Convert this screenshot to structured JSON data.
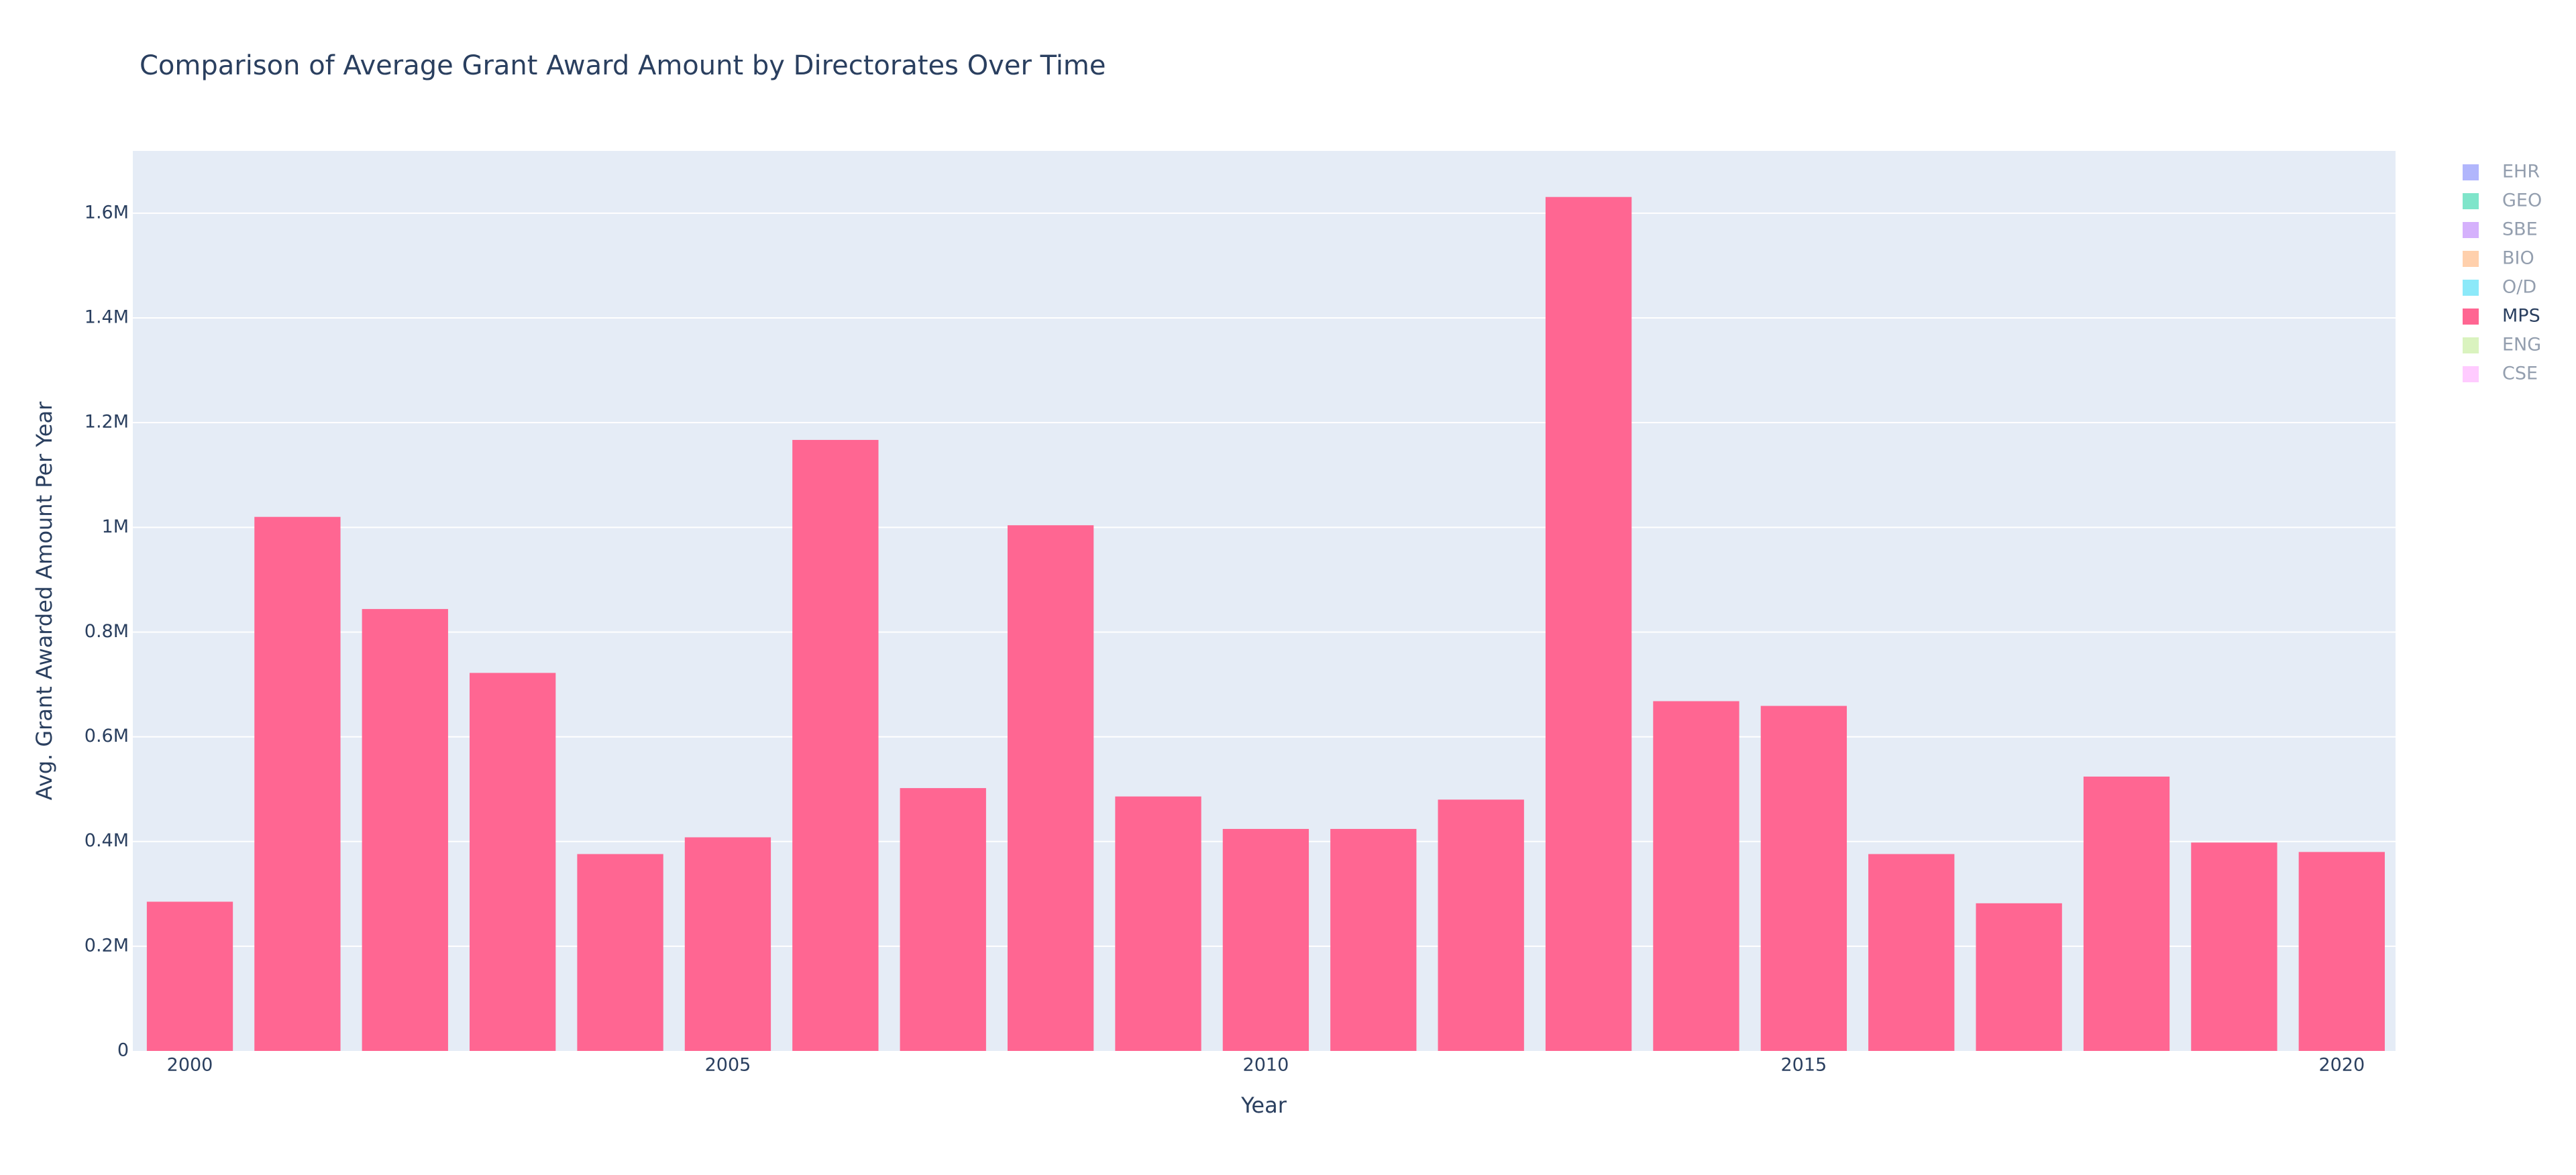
{
  "chart_data": {
    "type": "bar",
    "title": "Comparison of Average Grant Award Amount by Directorates Over Time",
    "x_label": "Year",
    "y_label": "Avg. Grant Awarded Amount Per Year",
    "x": [
      2000,
      2001,
      2002,
      2003,
      2004,
      2005,
      2006,
      2007,
      2008,
      2009,
      2010,
      2011,
      2012,
      2013,
      2014,
      2015,
      2016,
      2017,
      2018,
      2019,
      2020
    ],
    "series": [
      {
        "name": "EHR",
        "color": "#636efa",
        "visible": false
      },
      {
        "name": "GEO",
        "color": "#00cc96",
        "visible": false
      },
      {
        "name": "SBE",
        "color": "#ab63fa",
        "visible": false
      },
      {
        "name": "BIO",
        "color": "#ffa15a",
        "visible": false
      },
      {
        "name": "O/D",
        "color": "#19d3f3",
        "visible": false
      },
      {
        "name": "MPS",
        "color": "#ff6692",
        "visible": true,
        "values": [
          285000,
          1020000,
          844000,
          722000,
          376000,
          408000,
          1167000,
          502000,
          1004000,
          486000,
          424000,
          424000,
          480000,
          1631000,
          668000,
          659000,
          376000,
          282000,
          524000,
          398000,
          380000
        ]
      },
      {
        "name": "ENG",
        "color": "#b6e880",
        "visible": false
      },
      {
        "name": "CSE",
        "color": "#ff97ff",
        "visible": false
      }
    ],
    "xlim": [
      1999.47,
      2020.5
    ],
    "xticks": [
      2000,
      2005,
      2010,
      2015,
      2020
    ],
    "ylim": [
      0,
      1719000
    ],
    "yticks": [
      0,
      {
        "value": 200000,
        "label": "0.2M"
      },
      {
        "value": 400000,
        "label": "0.4M"
      },
      {
        "value": 600000,
        "label": "0.6M"
      },
      {
        "value": 800000,
        "label": "0.8M"
      },
      {
        "value": 1000000,
        "label": "1M"
      },
      {
        "value": 1200000,
        "label": "1.2M"
      },
      {
        "value": 1400000,
        "label": "1.4M"
      },
      {
        "value": 1600000,
        "label": "1.6M"
      }
    ],
    "grid": true,
    "legend_position": "right"
  }
}
